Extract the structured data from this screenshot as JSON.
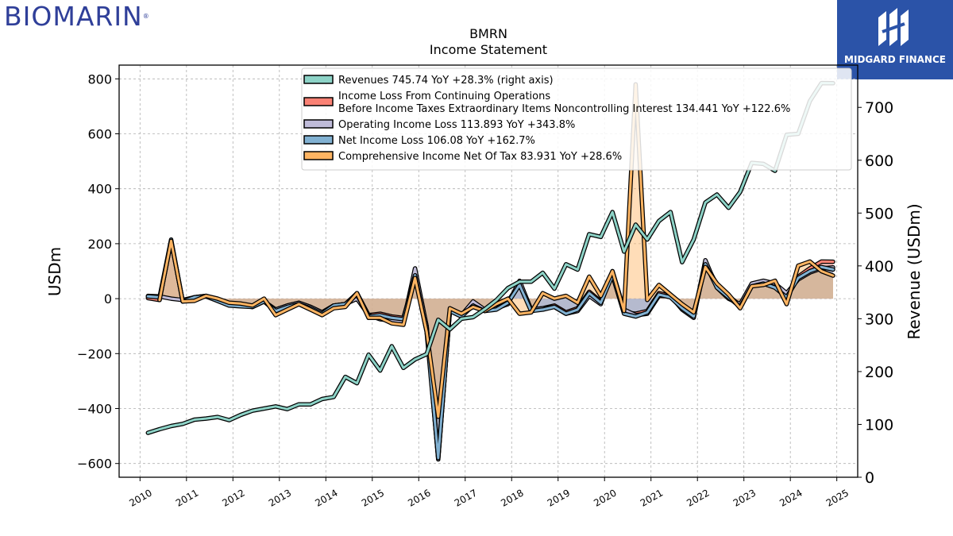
{
  "brand": {
    "logo_text": "BIOMARIN",
    "registered_mark": "®"
  },
  "badge": {
    "text": "MIDGARD FINANCE",
    "color": "#2b53a8"
  },
  "chart_data": {
    "type": "line",
    "title": "BMRN",
    "subtitle": "Income Statement",
    "ylabel": "USDm",
    "y2label": "Revenue (USDm)",
    "ylim": [
      -650,
      850
    ],
    "y2lim": [
      0,
      780
    ],
    "xlim": [
      2009.55,
      2025.45
    ],
    "yticks": [
      -600,
      -400,
      -200,
      0,
      200,
      400,
      600,
      800
    ],
    "y2ticks": [
      0,
      100,
      200,
      300,
      400,
      500,
      600,
      700
    ],
    "xticks": [
      2010,
      2011,
      2012,
      2013,
      2014,
      2015,
      2016,
      2017,
      2018,
      2019,
      2020,
      2021,
      2022,
      2023,
      2024,
      2025
    ],
    "xtick_labels": [
      "2010",
      "2011",
      "2012",
      "2013",
      "2014",
      "2015",
      "2016",
      "2017",
      "2018",
      "2019",
      "2020",
      "2021",
      "2022",
      "2023",
      "2024",
      "2025"
    ],
    "grid": true,
    "legend_position": "top-center",
    "series": [
      {
        "name": "Income Loss From Continuing Operations Before Income Taxes Extraordinary Items Noncontrolling Interest",
        "legend": [
          "Income Loss From Continuing Operations",
          "Before Income Taxes Extraordinary Items Noncontrolling Interest  134.441 YoY +122.6%"
        ],
        "axis": "left",
        "style": "fill",
        "color": "#fa8174",
        "x": [
          2010.17,
          2010.42,
          2010.67,
          2010.92,
          2011.17,
          2011.42,
          2011.67,
          2011.92,
          2012.17,
          2012.42,
          2012.67,
          2012.92,
          2013.17,
          2013.42,
          2013.67,
          2013.92,
          2014.17,
          2014.42,
          2014.67,
          2014.92,
          2015.17,
          2015.42,
          2015.67,
          2015.92,
          2016.17,
          2016.42,
          2016.67,
          2016.92,
          2017.17,
          2017.42,
          2017.67,
          2017.92,
          2018.17,
          2018.42,
          2018.67,
          2018.92,
          2019.17,
          2019.42,
          2019.67,
          2019.92,
          2020.17,
          2020.42,
          2020.67,
          2020.92,
          2021.17,
          2021.42,
          2021.67,
          2021.92,
          2022.17,
          2022.42,
          2022.67,
          2022.92,
          2023.17,
          2023.42,
          2023.67,
          2023.92,
          2024.17,
          2024.42,
          2024.67,
          2024.92
        ],
        "values": [
          2,
          -5,
          210,
          -10,
          5,
          10,
          -5,
          -20,
          -25,
          -30,
          -10,
          -40,
          -25,
          -15,
          -30,
          -50,
          -25,
          -20,
          20,
          -60,
          -55,
          -65,
          -70,
          80,
          -100,
          -580,
          -40,
          -60,
          -20,
          -40,
          -35,
          -10,
          55,
          -40,
          -35,
          -25,
          -50,
          -35,
          25,
          -10,
          90,
          -50,
          -55,
          -45,
          20,
          10,
          -30,
          -60,
          130,
          50,
          10,
          -25,
          50,
          60,
          45,
          10,
          80,
          110,
          135,
          134.441
        ]
      },
      {
        "name": "Operating Income Loss",
        "legend": [
          "Operating Income Loss  113.893 YoY +343.8%"
        ],
        "axis": "left",
        "style": "fill",
        "color": "#bfbbd9",
        "x": [
          2010.17,
          2010.42,
          2010.67,
          2010.92,
          2011.17,
          2011.42,
          2011.67,
          2011.92,
          2012.17,
          2012.42,
          2012.67,
          2012.92,
          2013.17,
          2013.42,
          2013.67,
          2013.92,
          2014.17,
          2014.42,
          2014.67,
          2014.92,
          2015.17,
          2015.42,
          2015.67,
          2015.92,
          2016.17,
          2016.42,
          2016.67,
          2016.92,
          2017.17,
          2017.42,
          2017.67,
          2017.92,
          2018.17,
          2018.42,
          2018.67,
          2018.92,
          2019.17,
          2019.42,
          2019.67,
          2019.92,
          2020.17,
          2020.42,
          2020.67,
          2020.92,
          2021.17,
          2021.42,
          2021.67,
          2021.92,
          2022.17,
          2022.42,
          2022.67,
          2022.92,
          2023.17,
          2023.42,
          2023.67,
          2023.92,
          2024.17,
          2024.42,
          2024.67,
          2024.92
        ],
        "values": [
          10,
          8,
          0,
          -5,
          5,
          10,
          -5,
          -20,
          -25,
          -30,
          -10,
          -40,
          -25,
          -15,
          -30,
          -50,
          -25,
          -20,
          0,
          -60,
          -75,
          -80,
          -85,
          110,
          -100,
          -585,
          -40,
          -60,
          -10,
          -40,
          -35,
          -20,
          65,
          -40,
          -35,
          -30,
          -55,
          -45,
          10,
          -20,
          100,
          -40,
          -60,
          -55,
          10,
          10,
          -40,
          -70,
          140,
          40,
          0,
          -20,
          55,
          65,
          55,
          20,
          70,
          95,
          110,
          113.893
        ]
      },
      {
        "name": "Net Income Loss",
        "legend": [
          "Net Income Loss  106.08 YoY +162.7%"
        ],
        "axis": "left",
        "style": "fill",
        "color": "#81b1d2",
        "x": [
          2010.17,
          2010.42,
          2010.67,
          2010.92,
          2011.17,
          2011.42,
          2011.67,
          2011.92,
          2012.17,
          2012.42,
          2012.67,
          2012.92,
          2013.17,
          2013.42,
          2013.67,
          2013.92,
          2014.17,
          2014.42,
          2014.67,
          2014.92,
          2015.17,
          2015.42,
          2015.67,
          2015.92,
          2016.17,
          2016.42,
          2016.67,
          2016.92,
          2017.17,
          2017.42,
          2017.67,
          2017.92,
          2018.17,
          2018.42,
          2018.67,
          2018.92,
          2019.17,
          2019.42,
          2019.67,
          2019.92,
          2020.17,
          2020.42,
          2020.67,
          2020.92,
          2021.17,
          2021.42,
          2021.67,
          2021.92,
          2022.17,
          2022.42,
          2022.67,
          2022.92,
          2023.17,
          2023.42,
          2023.67,
          2023.92,
          2024.17,
          2024.42,
          2024.67,
          2024.92
        ],
        "values": [
          8,
          5,
          215,
          -10,
          5,
          8,
          -8,
          -25,
          -28,
          -30,
          -10,
          -45,
          -30,
          -20,
          -35,
          -55,
          -25,
          -20,
          15,
          -65,
          -60,
          -70,
          -75,
          85,
          -120,
          -580,
          -45,
          -65,
          -25,
          -45,
          -40,
          -15,
          50,
          -45,
          -40,
          -30,
          -55,
          -40,
          20,
          -15,
          85,
          -55,
          -65,
          -50,
          15,
          5,
          -35,
          -65,
          125,
          40,
          5,
          -30,
          45,
          55,
          40,
          5,
          75,
          100,
          115,
          106.08
        ]
      },
      {
        "name": "Comprehensive Income Net Of Tax",
        "legend": [
          "Comprehensive Income Net Of Tax  83.931 YoY +28.6%"
        ],
        "axis": "left",
        "style": "fill",
        "color": "#feb462",
        "x": [
          2010.42,
          2010.67,
          2010.92,
          2011.17,
          2011.42,
          2011.67,
          2011.92,
          2012.17,
          2012.42,
          2012.67,
          2012.92,
          2013.17,
          2013.42,
          2013.67,
          2013.92,
          2014.17,
          2014.42,
          2014.67,
          2014.92,
          2015.17,
          2015.42,
          2015.67,
          2015.92,
          2016.17,
          2016.42,
          2016.67,
          2016.92,
          2017.17,
          2017.42,
          2017.67,
          2017.92,
          2018.17,
          2018.42,
          2018.67,
          2018.92,
          2019.17,
          2019.42,
          2019.67,
          2019.92,
          2020.17,
          2020.42,
          2020.67,
          2020.92,
          2021.17,
          2021.42,
          2021.67,
          2021.92,
          2022.17,
          2022.42,
          2022.67,
          2022.92,
          2023.17,
          2023.42,
          2023.67,
          2023.92,
          2024.17,
          2024.42,
          2024.67,
          2024.92
        ],
        "values": [
          -5,
          210,
          -10,
          -8,
          10,
          0,
          -15,
          -18,
          -25,
          0,
          -60,
          -40,
          -20,
          -40,
          -60,
          -35,
          -30,
          20,
          -70,
          -70,
          -90,
          -95,
          75,
          -120,
          -430,
          -35,
          -55,
          -30,
          -45,
          -20,
          0,
          -55,
          -50,
          20,
          0,
          10,
          -15,
          80,
          10,
          100,
          -45,
          780,
          -5,
          50,
          15,
          -20,
          -50,
          115,
          55,
          15,
          -35,
          45,
          50,
          65,
          -20,
          120,
          135,
          100,
          83.931
        ]
      },
      {
        "name": "Revenues",
        "legend": [
          "Revenues  745.74 YoY +28.3% (right axis)"
        ],
        "axis": "right",
        "style": "line",
        "color": "#8dd3c7",
        "x": [
          2010.17,
          2010.42,
          2010.67,
          2010.92,
          2011.17,
          2011.42,
          2011.67,
          2011.92,
          2012.17,
          2012.42,
          2012.67,
          2012.92,
          2013.17,
          2013.42,
          2013.67,
          2013.92,
          2014.17,
          2014.42,
          2014.67,
          2014.92,
          2015.17,
          2015.42,
          2015.67,
          2015.92,
          2016.17,
          2016.42,
          2016.67,
          2016.92,
          2017.17,
          2017.42,
          2017.67,
          2017.92,
          2018.17,
          2018.42,
          2018.67,
          2018.92,
          2019.17,
          2019.42,
          2019.67,
          2019.92,
          2020.17,
          2020.42,
          2020.67,
          2020.92,
          2021.17,
          2021.42,
          2021.67,
          2021.92,
          2022.17,
          2022.42,
          2022.67,
          2022.92,
          2023.17,
          2023.42,
          2023.67,
          2023.92,
          2024.17,
          2024.42,
          2024.67,
          2024.92
        ],
        "values": [
          84,
          91,
          97,
          101,
          109,
          111,
          114,
          108,
          118,
          126,
          130,
          134,
          129,
          138,
          138,
          148,
          152,
          190,
          178,
          232,
          202,
          248,
          207,
          223,
          233,
          298,
          280,
          300,
          303,
          318,
          335,
          358,
          370,
          370,
          387,
          357,
          403,
          393,
          460,
          455,
          502,
          427,
          478,
          450,
          485,
          502,
          407,
          450,
          520,
          535,
          510,
          540,
          595,
          593,
          580,
          648,
          650,
          712,
          746,
          745.74
        ]
      }
    ]
  }
}
